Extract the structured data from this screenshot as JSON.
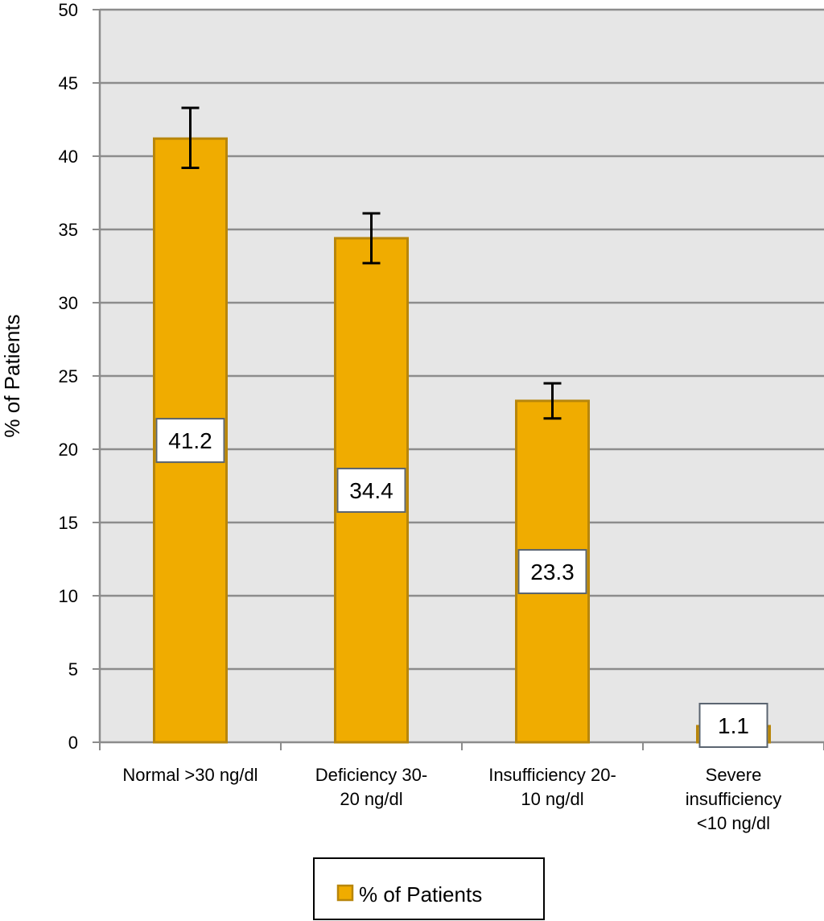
{
  "chart_data": {
    "type": "bar",
    "categories": [
      [
        "Normal >30 ng/dl"
      ],
      [
        "Deficiency 30-",
        "20 ng/dl"
      ],
      [
        "Insufficiency 20-",
        "10 ng/dl"
      ],
      [
        "Severe",
        "insufficiency",
        "<10 ng/dl"
      ]
    ],
    "series": [
      {
        "name": "% of Patients",
        "values": [
          41.2,
          34.4,
          23.3,
          1.1
        ],
        "data_labels": [
          "41.2",
          "34.4",
          "23.3",
          "1.1"
        ],
        "error_low": [
          39.2,
          32.7,
          22.1,
          null
        ],
        "error_high": [
          43.3,
          36.1,
          24.5,
          null
        ],
        "color": "#F0AC00",
        "edge_color": "#B8860B"
      }
    ],
    "ylabel": "% of Patients",
    "xlabel": "",
    "title": "",
    "ylim": [
      0,
      50
    ],
    "yticks": [
      0,
      5,
      10,
      15,
      20,
      25,
      30,
      35,
      40,
      45,
      50
    ],
    "grid": true,
    "plot_background": "#E6E6E6",
    "grid_color": "#8C8C8C",
    "legend_position": "bottom-center"
  }
}
